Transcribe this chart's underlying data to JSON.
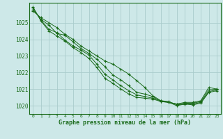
{
  "x": [
    0,
    1,
    2,
    3,
    4,
    5,
    6,
    7,
    8,
    9,
    10,
    11,
    12,
    13,
    14,
    15,
    16,
    17,
    18,
    19,
    20,
    21,
    22,
    23
  ],
  "line1": [
    1025.7,
    1025.3,
    1025.0,
    1024.7,
    1024.3,
    1024.0,
    1023.6,
    1023.3,
    1023.0,
    1022.7,
    1022.5,
    1022.2,
    1021.9,
    1021.5,
    1021.1,
    1020.6,
    1020.3,
    1020.2,
    1020.1,
    1020.2,
    1020.2,
    1020.3,
    1021.1,
    1021.0
  ],
  "line2": [
    1025.8,
    1025.2,
    1024.85,
    1024.35,
    1024.25,
    1023.85,
    1023.45,
    1023.15,
    1022.8,
    1022.35,
    1021.85,
    1021.55,
    1021.2,
    1020.8,
    1020.7,
    1020.55,
    1020.25,
    1020.2,
    1020.1,
    1020.15,
    1020.15,
    1020.25,
    1020.95,
    1021.0
  ],
  "line3": [
    1025.9,
    1025.15,
    1024.6,
    1024.4,
    1023.95,
    1023.6,
    1023.35,
    1023.05,
    1022.5,
    1021.9,
    1021.55,
    1021.2,
    1020.9,
    1020.65,
    1020.55,
    1020.45,
    1020.3,
    1020.25,
    1020.05,
    1020.1,
    1020.1,
    1020.2,
    1020.85,
    1020.95
  ],
  "line4": [
    1025.95,
    1025.1,
    1024.5,
    1024.2,
    1023.9,
    1023.5,
    1023.2,
    1022.85,
    1022.3,
    1021.65,
    1021.35,
    1021.0,
    1020.7,
    1020.5,
    1020.45,
    1020.4,
    1020.25,
    1020.2,
    1020.0,
    1020.1,
    1020.05,
    1020.15,
    1020.8,
    1020.9
  ],
  "bg_color": "#cde8e8",
  "grid_color": "#aacccc",
  "line_color": "#1a6b1a",
  "marker": "+",
  "ylabel_ticks": [
    1020,
    1021,
    1022,
    1023,
    1024,
    1025
  ],
  "xlabel_ticks": [
    0,
    1,
    2,
    3,
    4,
    5,
    6,
    7,
    8,
    9,
    10,
    11,
    12,
    13,
    14,
    15,
    16,
    17,
    18,
    19,
    20,
    21,
    22,
    23
  ],
  "xlabel_label": "Graphe pression niveau de la mer (hPa)",
  "ylim": [
    1019.5,
    1026.2
  ],
  "xlim": [
    -0.5,
    23.5
  ]
}
